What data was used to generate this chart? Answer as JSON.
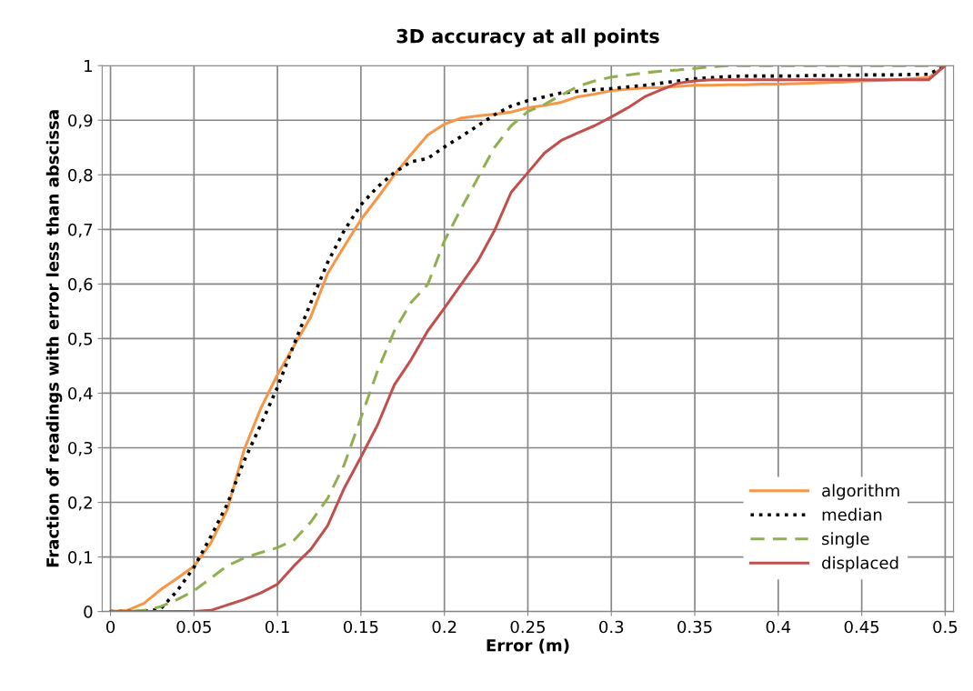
{
  "chart_data": {
    "type": "line",
    "title": "3D accuracy at all points",
    "xlabel": "Error (m)",
    "ylabel": "Fraction of readings with error less than abscissa",
    "x": [
      0,
      0.01,
      0.02,
      0.03,
      0.04,
      0.05,
      0.06,
      0.07,
      0.08,
      0.09,
      0.1,
      0.11,
      0.12,
      0.13,
      0.14,
      0.15,
      0.16,
      0.17,
      0.18,
      0.19,
      0.2,
      0.21,
      0.22,
      0.23,
      0.24,
      0.25,
      0.26,
      0.27,
      0.28,
      0.29,
      0.3,
      0.31,
      0.32,
      0.33,
      0.34,
      0.35,
      0.36,
      0.37,
      0.38,
      0.39,
      0.4,
      0.41,
      0.42,
      0.43,
      0.44,
      0.45,
      0.46,
      0.47,
      0.48,
      0.49,
      0.5
    ],
    "series": [
      {
        "name": "algorithm",
        "color": "#f79646",
        "line_style": "solid",
        "values": [
          0,
          0.002,
          0.015,
          0.04,
          0.061,
          0.083,
          0.125,
          0.187,
          0.296,
          0.372,
          0.434,
          0.487,
          0.54,
          0.619,
          0.669,
          0.718,
          0.758,
          0.8,
          0.837,
          0.873,
          0.893,
          0.904,
          0.908,
          0.911,
          0.915,
          0.923,
          0.927,
          0.933,
          0.943,
          0.948,
          0.954,
          0.957,
          0.959,
          0.96,
          0.962,
          0.964,
          0.964,
          0.965,
          0.965,
          0.966,
          0.966,
          0.967,
          0.968,
          0.969,
          0.97,
          0.972,
          0.973,
          0.974,
          0.976,
          0.978,
          1
        ]
      },
      {
        "name": "median",
        "color": "#000000",
        "line_style": "dotted",
        "values": [
          0,
          0,
          0,
          0.005,
          0.038,
          0.081,
          0.137,
          0.197,
          0.276,
          0.342,
          0.411,
          0.49,
          0.566,
          0.639,
          0.698,
          0.745,
          0.778,
          0.804,
          0.824,
          0.83,
          0.851,
          0.87,
          0.89,
          0.91,
          0.926,
          0.936,
          0.943,
          0.95,
          0.953,
          0.956,
          0.958,
          0.961,
          0.964,
          0.968,
          0.972,
          0.976,
          0.978,
          0.98,
          0.981,
          0.981,
          0.981,
          0.981,
          0.982,
          0.982,
          0.982,
          0.983,
          0.983,
          0.983,
          0.984,
          0.984,
          1
        ]
      },
      {
        "name": "single",
        "color": "#8faf50",
        "line_style": "dashed",
        "values": [
          0,
          0,
          0.002,
          0.009,
          0.022,
          0.038,
          0.061,
          0.084,
          0.098,
          0.108,
          0.117,
          0.131,
          0.164,
          0.207,
          0.269,
          0.355,
          0.441,
          0.514,
          0.566,
          0.599,
          0.679,
          0.738,
          0.794,
          0.85,
          0.89,
          0.916,
          0.929,
          0.946,
          0.962,
          0.972,
          0.979,
          0.983,
          0.987,
          0.99,
          0.992,
          0.995,
          0.998,
          1,
          1,
          1,
          1,
          1,
          1,
          1,
          1,
          1,
          1,
          1,
          1,
          1,
          1
        ]
      },
      {
        "name": "displaced",
        "color": "#c0504d",
        "line_style": "solid",
        "values": [
          0,
          0,
          0,
          0,
          0,
          0,
          0.002,
          0.012,
          0.022,
          0.034,
          0.05,
          0.084,
          0.114,
          0.157,
          0.226,
          0.283,
          0.342,
          0.415,
          0.461,
          0.514,
          0.556,
          0.599,
          0.642,
          0.698,
          0.768,
          0.804,
          0.84,
          0.863,
          0.877,
          0.89,
          0.906,
          0.923,
          0.943,
          0.956,
          0.968,
          0.972,
          0.974,
          0.974,
          0.974,
          0.974,
          0.974,
          0.974,
          0.974,
          0.974,
          0.974,
          0.974,
          0.974,
          0.974,
          0.974,
          0.974,
          1
        ]
      }
    ],
    "xlim": [
      -0.005,
      0.505
    ],
    "xticks": [
      0,
      0.05,
      0.1,
      0.15,
      0.2,
      0.25,
      0.3,
      0.35,
      0.4,
      0.45,
      0.5
    ],
    "ylim": [
      0,
      1
    ],
    "yticks": [
      0,
      {
        "value": 0.1,
        "label": "0,1"
      },
      {
        "value": 0.2,
        "label": "0,2"
      },
      {
        "value": 0.3,
        "label": "0,3"
      },
      {
        "value": 0.4,
        "label": "0,4"
      },
      {
        "value": 0.5,
        "label": "0,5"
      },
      {
        "value": 0.6,
        "label": "0,6"
      },
      {
        "value": 0.7,
        "label": "0,7"
      },
      {
        "value": 0.8,
        "label": "0,8"
      },
      {
        "value": 0.9,
        "label": "0,9"
      },
      1
    ],
    "grid": true,
    "legend": "bottom right",
    "marker": "none"
  }
}
